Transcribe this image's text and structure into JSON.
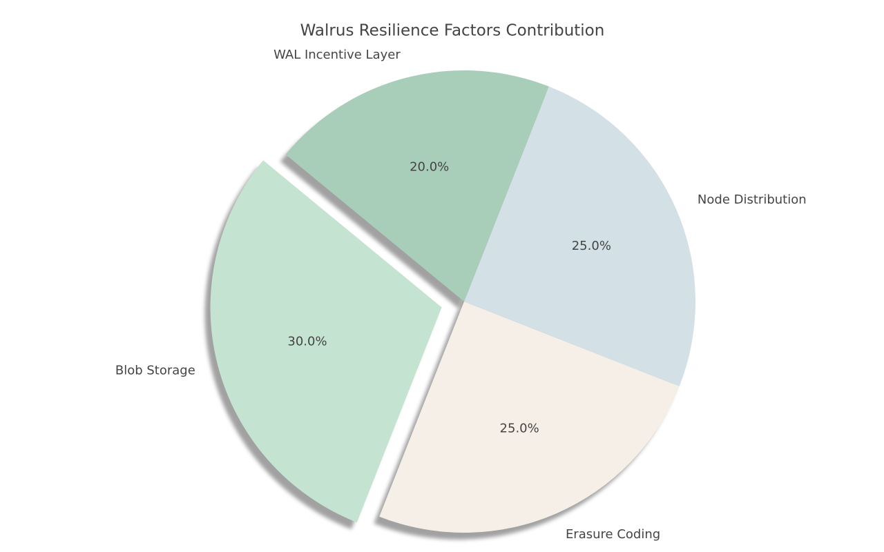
{
  "chart_data": {
    "type": "pie",
    "title": "Walrus Resilience Factors Contribution",
    "categories": [
      "Blob Storage",
      "Erasure Coding",
      "Node Distribution",
      "WAL Incentive Layer"
    ],
    "values": [
      30,
      25,
      25,
      20
    ],
    "value_labels": [
      "30.0%",
      "25.0%",
      "25.0%",
      "20.0%"
    ],
    "colors": [
      "#c5e3d1",
      "#f5efe8",
      "#d3e0e6",
      "#a8cdb8"
    ],
    "explode": [
      0.1,
      0,
      0,
      0
    ],
    "shadow": true
  }
}
